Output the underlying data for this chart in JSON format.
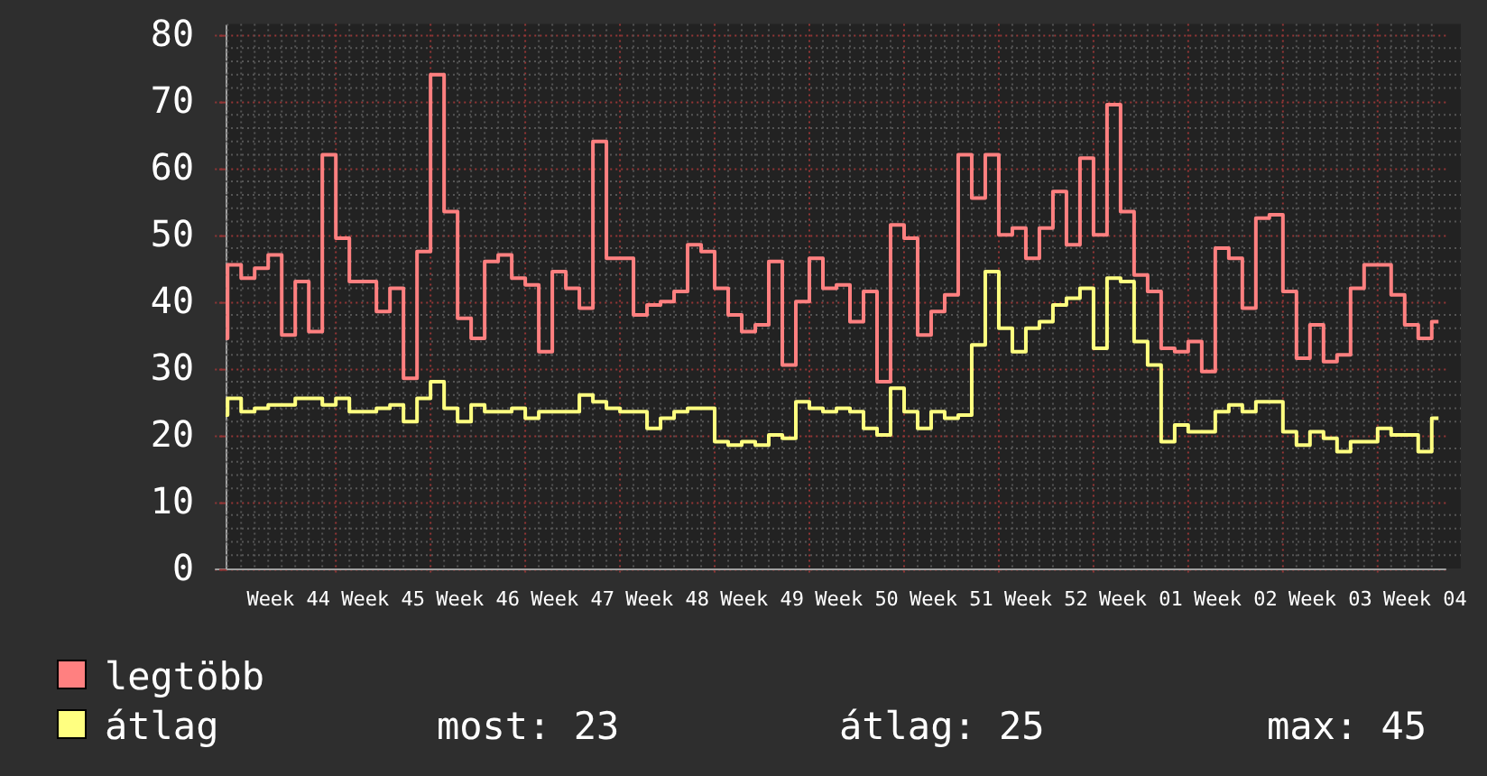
{
  "chart_data": {
    "type": "step",
    "categories": [
      null,
      null,
      null,
      null,
      null,
      "Week 44",
      null,
      null,
      null,
      null,
      null,
      null,
      "Week 45",
      null,
      null,
      null,
      null,
      null,
      null,
      "Week 46",
      null,
      null,
      null,
      null,
      null,
      null,
      "Week 47",
      null,
      null,
      null,
      null,
      null,
      null,
      "Week 48",
      null,
      null,
      null,
      null,
      null,
      null,
      "Week 49",
      null,
      null,
      null,
      null,
      null,
      null,
      "Week 50",
      null,
      null,
      null,
      null,
      null,
      null,
      "Week 51",
      null,
      null,
      null,
      null,
      null,
      null,
      "Week 52",
      null,
      null,
      null,
      null,
      null,
      null,
      "Week 01",
      null,
      null,
      null,
      null,
      null,
      null,
      "Week 02",
      null,
      null,
      null,
      null,
      null,
      null,
      "Week 03",
      null,
      null,
      null,
      null,
      null,
      null,
      "Week 04",
      null
    ],
    "ylim": [
      0,
      81.6
    ],
    "yticks": [
      0,
      10,
      20,
      30,
      40,
      50,
      60,
      70,
      80
    ],
    "series": [
      {
        "name": "legtöbb",
        "color": "#ff8080",
        "values": [
          34.5,
          45.5,
          43.5,
          45,
          47,
          35,
          43,
          35.5,
          62,
          49.5,
          43,
          43,
          38.5,
          42,
          28.5,
          47.5,
          74,
          53.5,
          37.5,
          34.5,
          46,
          47,
          43.5,
          42.5,
          32.5,
          44.5,
          42,
          39,
          64,
          46.5,
          46.5,
          38,
          39.5,
          40,
          41.5,
          48.5,
          47.5,
          42,
          38,
          35.5,
          36.5,
          46,
          30.5,
          40,
          46.5,
          42,
          42.5,
          37,
          41.5,
          28,
          51.5,
          49.5,
          35,
          38.5,
          41,
          62,
          55.5,
          62,
          50,
          51,
          46.5,
          51,
          56.5,
          48.5,
          61.5,
          50,
          69.5,
          53.5,
          44,
          41.5,
          33,
          32.5,
          34,
          29.5,
          48,
          46.5,
          39,
          52.5,
          53,
          41.5,
          31.5,
          36.5,
          31,
          32,
          42,
          45.5,
          45.5,
          41,
          36.5,
          34.5,
          37
        ]
      },
      {
        "name": "átlag",
        "color": "#ffff80",
        "values": [
          23,
          25.5,
          23.5,
          24,
          24.5,
          24.5,
          25.5,
          25.5,
          24.5,
          25.5,
          23.5,
          23.5,
          24,
          24.5,
          22,
          25.5,
          28,
          24,
          22,
          24.5,
          23.5,
          23.5,
          24,
          22.5,
          23.5,
          23.5,
          23.5,
          26,
          25,
          24,
          23.5,
          23.5,
          21,
          22.5,
          23.5,
          24,
          24,
          19,
          18.5,
          19,
          18.5,
          20,
          19.5,
          25,
          24,
          23.5,
          24,
          23.5,
          21,
          20,
          27,
          23.5,
          21,
          23.5,
          22.5,
          23,
          33.5,
          44.5,
          36,
          32.5,
          36,
          37,
          39.5,
          40.5,
          42,
          33,
          43.5,
          43,
          34,
          30.5,
          19,
          21.5,
          20.5,
          20.5,
          23.5,
          24.5,
          23.5,
          25,
          25,
          20.5,
          18.5,
          20.5,
          19.5,
          17.5,
          19,
          19,
          21,
          20,
          20,
          17.5,
          22.5
        ]
      }
    ],
    "grid": true,
    "legend": "bottom left",
    "annotations": [
      "most: 23",
      "átlag: 25",
      "max: 45"
    ]
  }
}
